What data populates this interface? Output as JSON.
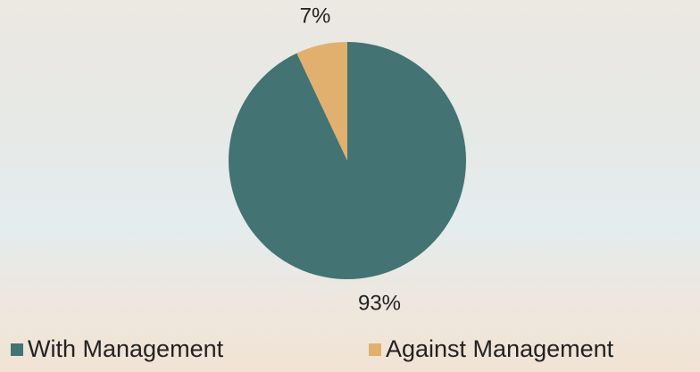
{
  "chart_data": {
    "type": "pie",
    "categories": [
      "With Management",
      "Against Management"
    ],
    "values": [
      93,
      7
    ],
    "value_labels": [
      "93%",
      "7%"
    ],
    "colors": [
      "#437372",
      "#e2b06e"
    ]
  }
}
